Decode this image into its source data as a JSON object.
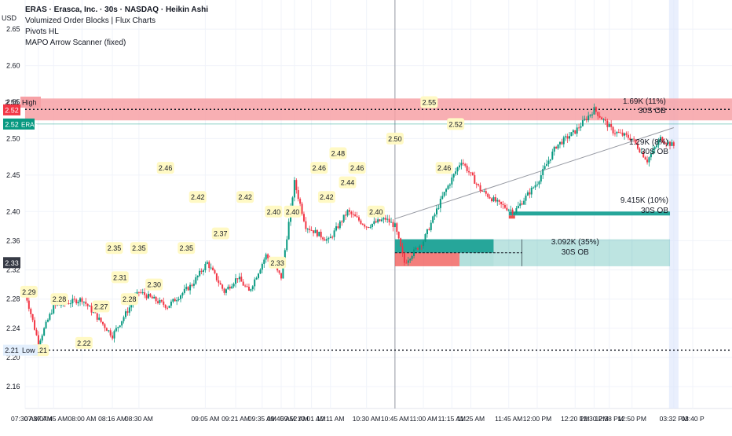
{
  "header": {
    "currency": "USD",
    "symbol_line": "ERAS · Erasca, Inc. · 30s · NASDAQ · Heikin Ashi",
    "indicators": [
      "Volumized Order Blocks | Flux Charts",
      "Pivots HL",
      "MAPO Arrow Scanner (fixed)"
    ]
  },
  "colors": {
    "up": "#089981",
    "down": "#f23645",
    "pivot_bg": "#fff9c4",
    "bull_ob": "#26a69a",
    "bear_ob": "#ef5350",
    "high_zone": "#f7a1a6"
  },
  "chart_data": {
    "type": "candlestick",
    "yaxis": {
      "ylim": [
        2.13,
        2.69
      ],
      "ticks": [
        2.16,
        2.2,
        2.24,
        2.28,
        2.32,
        2.36,
        2.4,
        2.45,
        2.5,
        2.55,
        2.6,
        2.65
      ]
    },
    "xaxis": {
      "ticks": [
        {
          "label": "07:30 AM",
          "t": 0
        },
        {
          "label": "07:37 AM",
          "t": 7
        },
        {
          "label": "07:45 AM",
          "t": 15
        },
        {
          "label": "08:00 AM",
          "t": 30
        },
        {
          "label": "08:16 AM",
          "t": 46
        },
        {
          "label": "08:30 AM",
          "t": 60
        },
        {
          "label": "09:05 AM",
          "t": 95
        },
        {
          "label": "09:21 AM",
          "t": 111
        },
        {
          "label": "09:35 AM",
          "t": 125
        },
        {
          "label": "09:45 AM",
          "t": 135
        },
        {
          "label": "09:52 AM",
          "t": 142
        },
        {
          "label": "10:01 AM",
          "t": 151
        },
        {
          "label": "10:11 AM",
          "t": 161
        },
        {
          "label": "10:30 AM",
          "t": 180
        },
        {
          "label": "10:45 AM",
          "t": 195
        },
        {
          "label": "11:00 AM",
          "t": 210
        },
        {
          "label": "11:15 AM",
          "t": 225
        },
        {
          "label": "11:25 AM",
          "t": 235
        },
        {
          "label": "11:45 AM",
          "t": 255
        },
        {
          "label": "12:00 PM",
          "t": 270
        },
        {
          "label": "12:20 PM",
          "t": 290
        },
        {
          "label": "12:30 PM",
          "t": 300
        },
        {
          "label": "12:38 PM",
          "t": 308
        },
        {
          "label": "12:50 PM",
          "t": 320
        },
        {
          "label": "03:32 PM",
          "t": 342
        },
        {
          "label": "03:40 P",
          "t": 352
        }
      ]
    },
    "price_path": [
      [
        0,
        2.29
      ],
      [
        7,
        2.22
      ],
      [
        15,
        2.27
      ],
      [
        30,
        2.28
      ],
      [
        46,
        2.23
      ],
      [
        60,
        2.29
      ],
      [
        75,
        2.27
      ],
      [
        88,
        2.3
      ],
      [
        96,
        2.33
      ],
      [
        105,
        2.29
      ],
      [
        112,
        2.31
      ],
      [
        118,
        2.29
      ],
      [
        127,
        2.34
      ],
      [
        135,
        2.31
      ],
      [
        142,
        2.44
      ],
      [
        148,
        2.38
      ],
      [
        160,
        2.36
      ],
      [
        170,
        2.4
      ],
      [
        180,
        2.38
      ],
      [
        190,
        2.39
      ],
      [
        195,
        2.38
      ],
      [
        200,
        2.33
      ],
      [
        210,
        2.36
      ],
      [
        220,
        2.42
      ],
      [
        230,
        2.47
      ],
      [
        240,
        2.43
      ],
      [
        250,
        2.41
      ],
      [
        258,
        2.4
      ],
      [
        270,
        2.44
      ],
      [
        280,
        2.49
      ],
      [
        290,
        2.51
      ],
      [
        300,
        2.54
      ],
      [
        310,
        2.51
      ],
      [
        320,
        2.5
      ],
      [
        328,
        2.47
      ],
      [
        335,
        2.5
      ],
      [
        342,
        2.49
      ]
    ],
    "pivots": [
      {
        "t": 2,
        "v": 2.29,
        "label": "2.29"
      },
      {
        "t": 8,
        "v": 2.21,
        "label": "2.21"
      },
      {
        "t": 18,
        "v": 2.28,
        "label": "2.28"
      },
      {
        "t": 31,
        "v": 2.22,
        "label": "2.22"
      },
      {
        "t": 40,
        "v": 2.27,
        "label": "2.27"
      },
      {
        "t": 47,
        "v": 2.35,
        "label": "2.35"
      },
      {
        "t": 50,
        "v": 2.31,
        "label": "2.31"
      },
      {
        "t": 55,
        "v": 2.28,
        "label": "2.28"
      },
      {
        "t": 60,
        "v": 2.35,
        "label": "2.35"
      },
      {
        "t": 68,
        "v": 2.3,
        "label": "2.30"
      },
      {
        "t": 74,
        "v": 2.46,
        "label": "2.46"
      },
      {
        "t": 85,
        "v": 2.35,
        "label": "2.35"
      },
      {
        "t": 91,
        "v": 2.42,
        "label": "2.42"
      },
      {
        "t": 103,
        "v": 2.37,
        "label": "2.37"
      },
      {
        "t": 116,
        "v": 2.42,
        "label": "2.42"
      },
      {
        "t": 131,
        "v": 2.4,
        "label": "2.40"
      },
      {
        "t": 133,
        "v": 2.33,
        "label": "2.33"
      },
      {
        "t": 141,
        "v": 2.4,
        "label": "2.40"
      },
      {
        "t": 155,
        "v": 2.46,
        "label": "2.46"
      },
      {
        "t": 159,
        "v": 2.42,
        "label": "2.42"
      },
      {
        "t": 165,
        "v": 2.48,
        "label": "2.48"
      },
      {
        "t": 170,
        "v": 2.44,
        "label": "2.44"
      },
      {
        "t": 175,
        "v": 2.46,
        "label": "2.46"
      },
      {
        "t": 185,
        "v": 2.4,
        "label": "2.40"
      },
      {
        "t": 195,
        "v": 2.5,
        "label": "2.50"
      },
      {
        "t": 213,
        "v": 2.55,
        "label": "2.55"
      },
      {
        "t": 221,
        "v": 2.46,
        "label": "2.46"
      },
      {
        "t": 227,
        "v": 2.52,
        "label": "2.52"
      }
    ],
    "levels": {
      "high": {
        "label": "High",
        "value": 2.55
      },
      "low": {
        "label": "Low",
        "value": 2.21
      },
      "last": {
        "label": "2.52",
        "symbol": "ERAS",
        "value": 2.52
      },
      "red_marker": {
        "label": "2.52",
        "value": 2.52
      },
      "left_marker": {
        "label": "2.33",
        "value": 2.33
      }
    },
    "order_blocks": [
      {
        "kind": "bear",
        "top": 2.555,
        "bottom": 2.525,
        "volume": "1.69K (11%)",
        "tag": "30S OB"
      },
      {
        "kind": "bull",
        "top": 2.4,
        "bottom": 2.395,
        "volume": "9.415K (10%)",
        "tag": "30S OB"
      },
      {
        "kind": "bull",
        "top": 2.362,
        "bottom": 2.325,
        "volume": "3.092K (35%)",
        "tag": "30S OB"
      },
      {
        "kind": "mid",
        "volume": "1.29K (8%)",
        "tag": "30S OB"
      }
    ]
  }
}
